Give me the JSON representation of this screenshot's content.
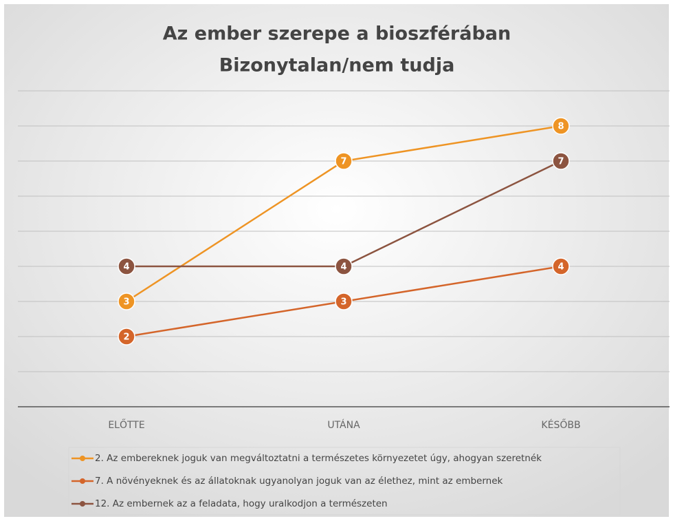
{
  "chart_data": {
    "type": "line",
    "title": [
      "Az ember szerepe a bioszférában",
      "Bizonytalan/nem tudja"
    ],
    "categories": [
      "ELŐTTE",
      "UTÁNA",
      "KÉSŐBB"
    ],
    "series": [
      {
        "name": "2. Az embereknek joguk van megváltoztatni a természetes környezetet úgy, ahogyan szeretnék",
        "color": "#ee9424",
        "values": [
          3,
          7,
          8
        ]
      },
      {
        "name": "7. A növényeknek és az állatoknak ugyanolyan joguk van az élethez, mint az embernek",
        "color": "#d4652a",
        "values": [
          2,
          3,
          4
        ]
      },
      {
        "name": "12. Az embernek az a feladata, hogy uralkodjon a természeten",
        "color": "#8c5440",
        "values": [
          4,
          4,
          7
        ]
      }
    ],
    "ylim": [
      0,
      9
    ],
    "yticks": [
      0,
      1,
      2,
      3,
      4,
      5,
      6,
      7,
      8,
      9
    ],
    "grid": true,
    "data_labels": true,
    "legend": "bottom"
  }
}
